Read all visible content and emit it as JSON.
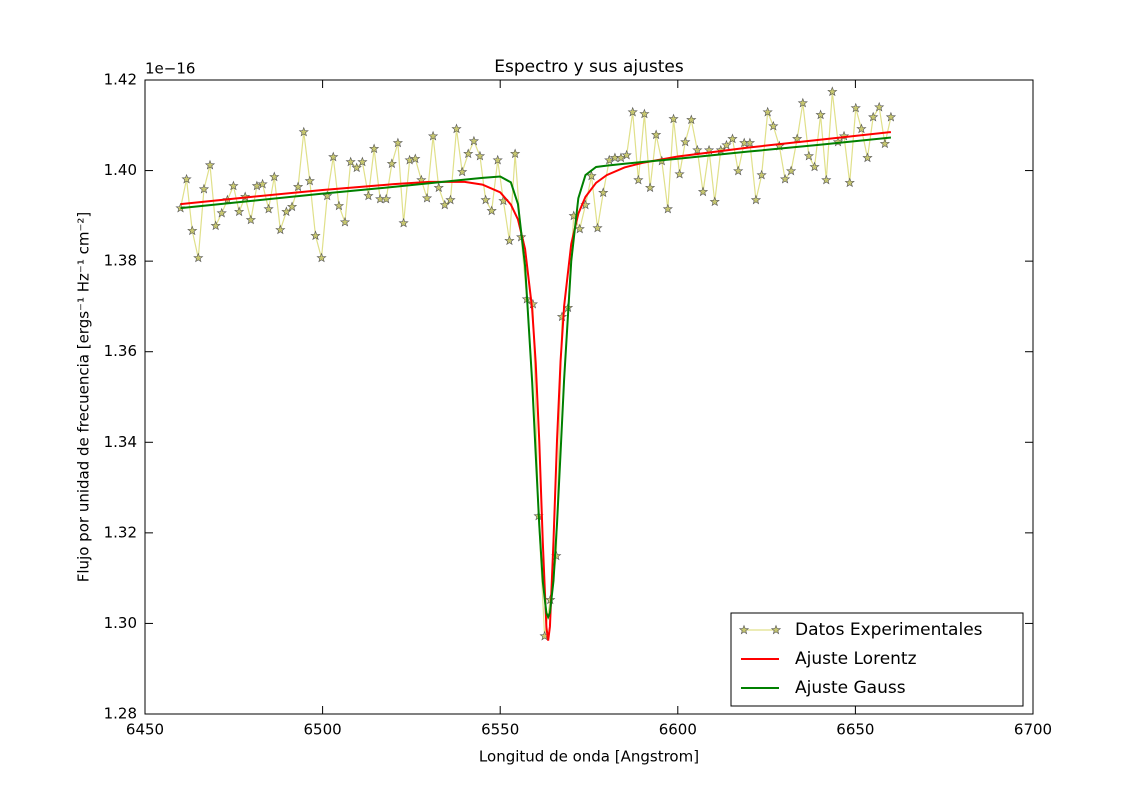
{
  "chart_data": {
    "type": "line",
    "title": "Espectro y sus ajustes",
    "x_label": "Longitud de onda [Angstrom]",
    "y_label": "Flujo por unidad de frecuencia [ergs⁻¹ Hz⁻¹ cm⁻²]",
    "y_offset_label": "1e−16",
    "xlim": [
      6450,
      6700
    ],
    "xticks": [
      6450,
      6500,
      6550,
      6600,
      6650,
      6700
    ],
    "ylim": [
      1.28,
      1.42
    ],
    "yticks": [
      1.28,
      {
        "value": 1.3,
        "label": "1.30"
      },
      1.32,
      1.34,
      1.36,
      1.38,
      {
        "value": 1.4,
        "label": "1.40"
      },
      1.42
    ],
    "grid": false,
    "legend": "lower right",
    "series": [
      {
        "name": "Datos Experimentales",
        "color": "#e0e08a",
        "marker_color": "#c8c870",
        "marker": "star",
        "x": [
          6460.0,
          6461.7,
          6463.3,
          6465.0,
          6466.6,
          6468.3,
          6469.9,
          6471.6,
          6473.2,
          6474.9,
          6476.5,
          6478.2,
          6479.8,
          6481.5,
          6483.1,
          6484.8,
          6486.4,
          6488.1,
          6489.8,
          6491.4,
          6493.1,
          6494.7,
          6496.4,
          6498.0,
          6499.7,
          6501.3,
          6503.0,
          6504.6,
          6506.3,
          6507.9,
          6509.6,
          6511.2,
          6512.9,
          6514.5,
          6516.2,
          6517.9,
          6519.5,
          6521.2,
          6522.8,
          6524.5,
          6526.1,
          6527.8,
          6529.4,
          6531.1,
          6532.7,
          6534.4,
          6536.0,
          6537.7,
          6539.3,
          6541.0,
          6542.6,
          6544.3,
          6545.9,
          6547.6,
          6549.3,
          6550.9,
          6552.6,
          6554.2,
          6555.9,
          6557.5,
          6559.2,
          6560.8,
          6562.5,
          6564.1,
          6565.8,
          6567.4,
          6569.1,
          6570.7,
          6572.4,
          6574.0,
          6575.7,
          6577.4,
          6579.0,
          6580.7,
          6582.3,
          6584.0,
          6585.6,
          6587.3,
          6588.9,
          6590.6,
          6592.2,
          6593.9,
          6595.5,
          6597.2,
          6598.8,
          6600.5,
          6602.1,
          6603.8,
          6605.5,
          6607.1,
          6608.8,
          6610.4,
          6612.1,
          6613.7,
          6615.4,
          6617.0,
          6618.7,
          6620.3,
          6622.0,
          6623.6,
          6625.3,
          6626.9,
          6628.6,
          6630.2,
          6631.9,
          6633.6,
          6635.2,
          6636.9,
          6638.5,
          6640.2,
          6641.8,
          6643.5,
          6645.1,
          6646.8,
          6648.4,
          6650.1,
          6651.7,
          6653.4,
          6655.0,
          6656.7,
          6658.3,
          6660.0
        ],
        "values": [
          1.3917,
          1.3981,
          1.3867,
          1.3807,
          1.3959,
          1.4012,
          1.3878,
          1.3906,
          1.3935,
          1.3966,
          1.3909,
          1.3942,
          1.3891,
          1.3966,
          1.397,
          1.3915,
          1.3986,
          1.3869,
          1.3909,
          1.392,
          1.3964,
          1.4085,
          1.3977,
          1.3856,
          1.3807,
          1.3944,
          1.403,
          1.3922,
          1.3886,
          1.4019,
          1.4006,
          1.4019,
          1.3944,
          1.4048,
          1.3937,
          1.3937,
          1.4015,
          1.4061,
          1.3884,
          1.4023,
          1.4026,
          1.3979,
          1.3939,
          1.4076,
          1.3962,
          1.3924,
          1.3935,
          1.4092,
          1.3997,
          1.4037,
          1.4065,
          1.4032,
          1.3935,
          1.3911,
          1.4023,
          1.3933,
          1.3845,
          1.4037,
          1.3853,
          1.3716,
          1.3705,
          1.3237,
          1.2972,
          1.3052,
          1.3149,
          1.3677,
          1.3697,
          1.39,
          1.3871,
          1.3924,
          1.3988,
          1.3873,
          1.3951,
          1.4023,
          1.4028,
          1.4028,
          1.4034,
          1.4129,
          1.3979,
          1.4125,
          1.3962,
          1.4079,
          1.4021,
          1.3915,
          1.4114,
          1.3992,
          1.4063,
          1.4112,
          1.4045,
          1.3953,
          1.4045,
          1.3931,
          1.4045,
          1.4056,
          1.407,
          1.3999,
          1.4061,
          1.4061,
          1.3935,
          1.399,
          1.4129,
          1.4098,
          1.4054,
          1.3981,
          1.3999,
          1.407,
          1.4149,
          1.4032,
          1.4008,
          1.4123,
          1.3979,
          1.4174,
          1.4063,
          1.4076,
          1.3973,
          1.4138,
          1.4092,
          1.4028,
          1.4118,
          1.414,
          1.4059,
          1.4118
        ]
      },
      {
        "name": "Ajuste Lorentz",
        "color": "#ff0000",
        "x": [
          6460,
          6480,
          6500,
          6520,
          6530,
          6540,
          6545,
          6550,
          6553,
          6555,
          6557,
          6559,
          6560,
          6561,
          6562,
          6563,
          6563.5,
          6564,
          6565,
          6566,
          6567,
          6568,
          6570,
          6572,
          6574,
          6577,
          6580,
          6585,
          6590,
          6600,
          6620,
          6640,
          6660
        ],
        "values": [
          1.3926,
          1.3942,
          1.3957,
          1.397,
          1.3975,
          1.3975,
          1.3969,
          1.3952,
          1.3925,
          1.3892,
          1.3827,
          1.3694,
          1.3575,
          1.3402,
          1.3178,
          1.2992,
          1.2962,
          1.2993,
          1.3181,
          1.3405,
          1.358,
          1.3701,
          1.3838,
          1.3905,
          1.3942,
          1.3973,
          1.399,
          1.4007,
          1.4017,
          1.4031,
          1.4051,
          1.4068,
          1.4085
        ]
      },
      {
        "name": "Ajuste Gauss",
        "color": "#008000",
        "x": [
          6460,
          6480,
          6500,
          6520,
          6530,
          6540,
          6545,
          6550,
          6553,
          6555,
          6557,
          6559,
          6560,
          6561,
          6562,
          6563,
          6563.5,
          6564,
          6565,
          6566,
          6567,
          6568,
          6570,
          6572,
          6574,
          6577,
          6580,
          6585,
          6590,
          6600,
          6620,
          6640,
          6660
        ],
        "values": [
          1.3917,
          1.3933,
          1.3949,
          1.3964,
          1.3972,
          1.398,
          1.3984,
          1.3987,
          1.3974,
          1.3926,
          1.379,
          1.3533,
          1.3373,
          1.3217,
          1.3092,
          1.3023,
          1.3014,
          1.3024,
          1.3094,
          1.3221,
          1.3378,
          1.354,
          1.38,
          1.3939,
          1.399,
          1.4008,
          1.4011,
          1.4015,
          1.4019,
          1.4026,
          1.4042,
          1.4057,
          1.4073
        ]
      }
    ]
  }
}
